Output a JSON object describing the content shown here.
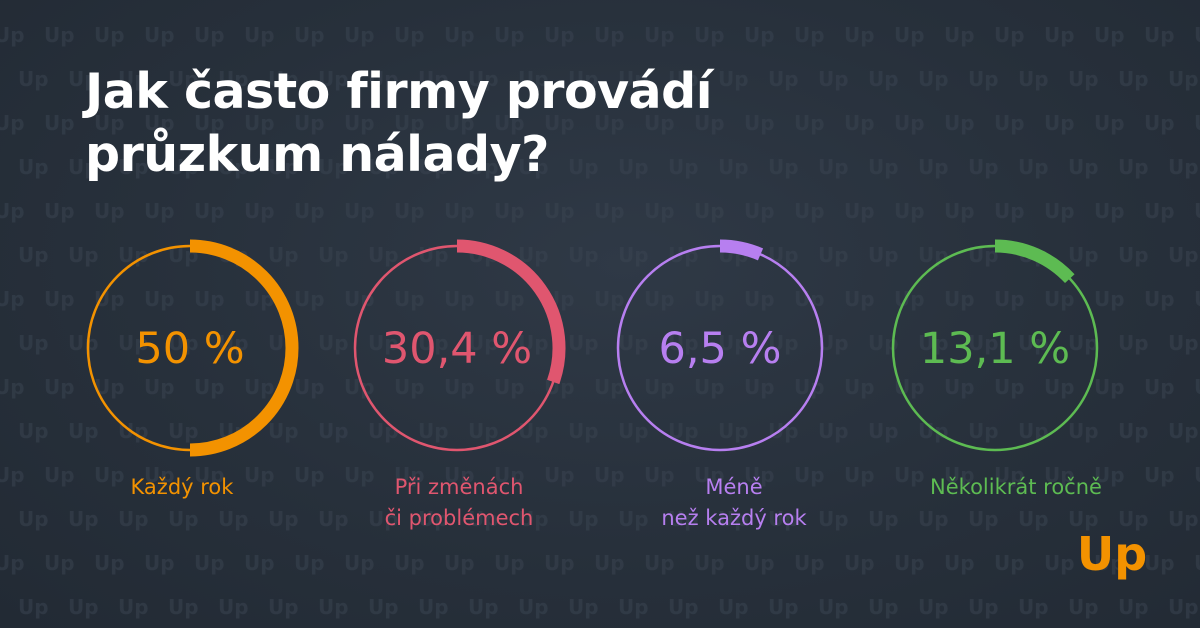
{
  "title_lines": [
    "Jak často firmy provádí",
    "průzkum nálady?"
  ],
  "background_watermark": "Up",
  "logo_text": "Up",
  "colors": {
    "background": "#27303b",
    "title": "#ffffff",
    "watermark": "#3a4451",
    "logo": "#f39200"
  },
  "chart_data": {
    "type": "donut",
    "items": [
      {
        "value": 50,
        "value_label": "50 %",
        "label_lines": [
          "Každý rok"
        ],
        "color": "#f39200"
      },
      {
        "value": 30.4,
        "value_label": "30,4 %",
        "label_lines": [
          "Při změnách",
          "či problémech"
        ],
        "color": "#e0566f"
      },
      {
        "value": 6.5,
        "value_label": "6,5 %",
        "label_lines": [
          "Méně",
          "než každý rok"
        ],
        "color": "#b77ff0"
      },
      {
        "value": 13.1,
        "value_label": "13,1 %",
        "label_lines": [
          "Několikrát ročně"
        ],
        "color": "#5dbb52"
      }
    ]
  }
}
